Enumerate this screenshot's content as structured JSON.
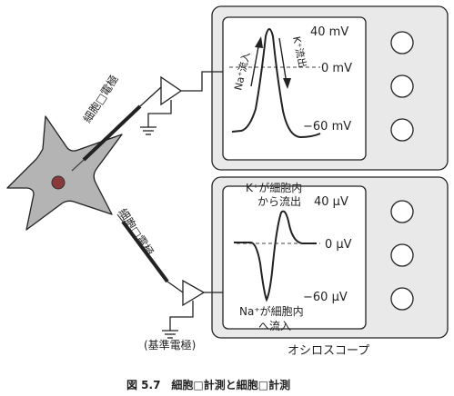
{
  "caption": "図 5.7　細胞□計測と細胞□計測",
  "oscilloscope_label": "オシロスコープ",
  "reference_electrode_label": "(基準電極)",
  "intracellular": {
    "electrode_label": "細胞□電極",
    "ticks": [
      "40 mV",
      "0 mV",
      "−60 mV"
    ],
    "na_annotation": "Na⁺流入",
    "k_annotation": "K⁺流出"
  },
  "extracellular": {
    "electrode_label": "細胞□電極",
    "ticks": [
      "40 μV",
      "0 μV",
      "−60 μV"
    ],
    "k_annotation_line1": "K⁺が細胞内",
    "k_annotation_line2": "から流出",
    "na_annotation_line1": "Na⁺が細胞内",
    "na_annotation_line2": "へ流入"
  },
  "colors": {
    "cell_fill": "#b4b4b4",
    "nucleus_fill": "#8a3a3a",
    "panel_bg": "#e9e9e9",
    "screen_bg": "#ffffff",
    "line": "#222222"
  }
}
